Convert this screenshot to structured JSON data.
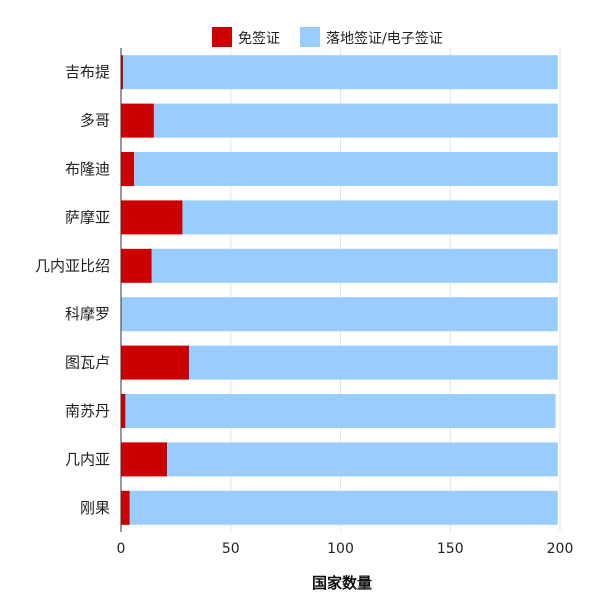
{
  "chart_data": {
    "type": "bar",
    "orientation": "horizontal",
    "stacked": true,
    "title": "",
    "xlabel": "国家数量",
    "ylabel": "",
    "xlim": [
      0,
      200
    ],
    "x_ticks": [
      0,
      50,
      100,
      150,
      200
    ],
    "grid": true,
    "legend_position": "top",
    "categories": [
      "吉布提",
      "多哥",
      "布隆迪",
      "萨摩亚",
      "几内亚比绍",
      "科摩罗",
      "图瓦卢",
      "南苏丹",
      "几内亚",
      "刚果"
    ],
    "series": [
      {
        "name": "免签证",
        "color": "#cc0000",
        "values": [
          1,
          15,
          6,
          28,
          14,
          0,
          31,
          2,
          21,
          4
        ]
      },
      {
        "name": "落地签证/电子签证",
        "color": "#99ccff",
        "values": [
          198,
          184,
          193,
          171,
          185,
          199,
          168,
          196,
          178,
          195
        ]
      }
    ]
  }
}
